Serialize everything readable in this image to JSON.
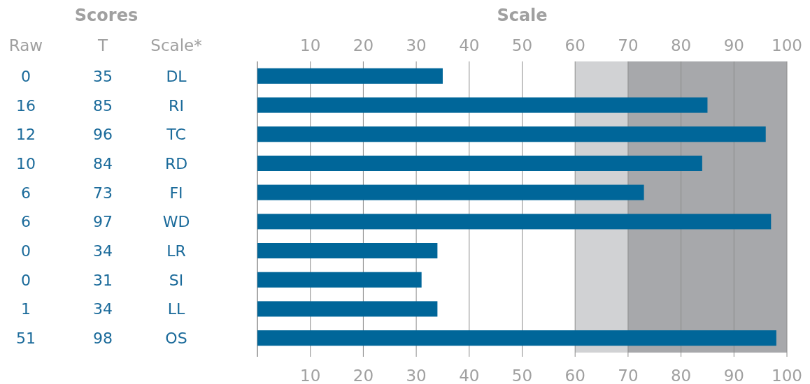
{
  "chart_data": {
    "type": "bar",
    "orientation": "horizontal",
    "x2label": "Scale",
    "categories": [
      "DL",
      "RI",
      "TC",
      "RD",
      "FI",
      "WD",
      "LR",
      "SI",
      "LL",
      "OS"
    ],
    "values": [
      35,
      85,
      96,
      84,
      73,
      97,
      34,
      31,
      34,
      98
    ],
    "color": "#006699",
    "data_labels": true,
    "xlim": [
      0,
      100
    ],
    "xticks": [
      {
        "value": 0,
        "label": null
      },
      10,
      20,
      30,
      40,
      50,
      60,
      70,
      80,
      90,
      100
    ],
    "x2lim": [
      0,
      100
    ],
    "x2ticks": [
      10,
      20,
      30,
      40,
      50,
      60,
      70,
      80,
      90,
      100
    ],
    "grid": "x",
    "bands": [
      {
        "axis": "x",
        "from": 60,
        "to": 70,
        "color": "#d1d2d4"
      },
      {
        "axis": "x",
        "from": 70,
        "to": 100,
        "color": "#a7a8ab"
      }
    ],
    "annotations": [
      "Scores",
      "Raw",
      "T",
      "Scale*",
      "0",
      "16",
      "12",
      "10",
      "6",
      "6",
      "0",
      "0",
      "1",
      "51"
    ]
  }
}
